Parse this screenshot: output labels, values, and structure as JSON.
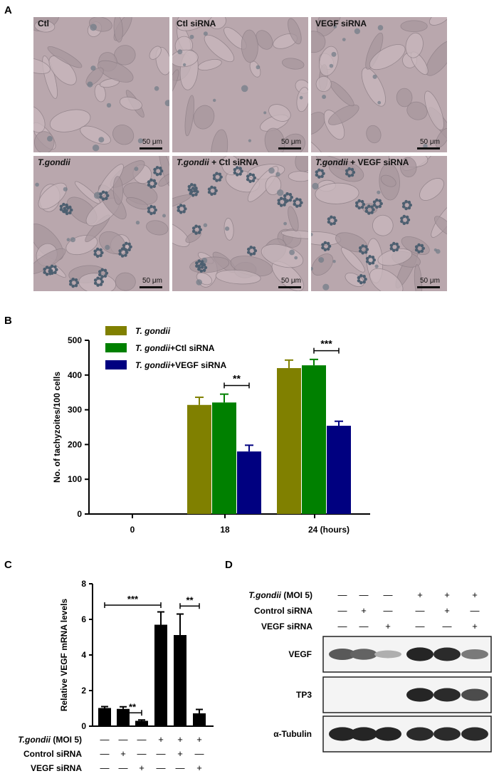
{
  "panels": {
    "a": "A",
    "b": "B",
    "c": "C",
    "d": "D"
  },
  "micrographs": [
    {
      "label": "Ctl",
      "italic": "",
      "rest": "Ctl",
      "scale": "50 μm",
      "infected": false
    },
    {
      "label": "Ctl siRNA",
      "italic": "",
      "rest": "Ctl siRNA",
      "scale": "50 μm",
      "infected": false
    },
    {
      "label": "VEGF siRNA",
      "italic": "",
      "rest": "VEGF siRNA",
      "scale": "50 μm",
      "infected": false
    },
    {
      "label": "T.gondii",
      "italic": "T.gondii",
      "rest": "",
      "scale": "50 μm",
      "infected": true
    },
    {
      "label": "T.gondii + Ctl siRNA",
      "italic": "T.gondii",
      "rest": " + Ctl siRNA",
      "scale": "50 μm",
      "infected": true
    },
    {
      "label": "T.gondii + VEGF siRNA",
      "italic": "T.gondii",
      "rest": " + VEGF siRNA",
      "scale": "50 μm",
      "infected": true
    }
  ],
  "chart_data": [
    {
      "type": "bar",
      "panel": "B",
      "ylabel": "No. of tachyzoites/100 cells",
      "ylim": [
        0,
        500
      ],
      "yticks": [
        "0",
        "100",
        "200",
        "300",
        "400",
        "500"
      ],
      "categories": [
        "0",
        "18",
        "24 (hours)"
      ],
      "legend_position": "top-left",
      "series": [
        {
          "name": "T. gondii",
          "italic": "T. gondii",
          "suffix": "",
          "color": "#808000",
          "values": [
            0,
            314,
            420
          ],
          "errors": [
            0,
            22,
            23
          ]
        },
        {
          "name": "T. gondii+Ctl siRNA",
          "italic": "T. gondii",
          "suffix": "+Ctl siRNA",
          "color": "#008000",
          "values": [
            0,
            321,
            428
          ],
          "errors": [
            0,
            24,
            17
          ]
        },
        {
          "name": "T. gondii+VEGF siRNA",
          "italic": "T. gondii",
          "suffix": "+VEGF siRNA",
          "color": "#000080",
          "values": [
            0,
            180,
            254
          ],
          "errors": [
            0,
            18,
            13
          ]
        }
      ],
      "annotations": [
        {
          "category": "18",
          "text": "**",
          "from_series": 1,
          "to_series": 2,
          "level": 370
        },
        {
          "category": "24 (hours)",
          "text": "***",
          "from_series": 1,
          "to_series": 2,
          "level": 470
        }
      ]
    },
    {
      "type": "bar",
      "panel": "C",
      "ylabel": "Relative VEGF mRNA levels",
      "ylim": [
        0,
        8
      ],
      "yticks": [
        "0",
        "2",
        "4",
        "6",
        "8"
      ],
      "color": "#000000",
      "values": [
        1.02,
        0.97,
        0.3,
        5.7,
        5.12,
        0.72
      ],
      "errors": [
        0.08,
        0.12,
        0.05,
        0.72,
        1.18,
        0.22
      ],
      "annotations": [
        {
          "from": 0,
          "to": 3,
          "text": "***",
          "level": 6.8
        },
        {
          "from": 1,
          "to": 2,
          "text": "**",
          "level": 0.75
        },
        {
          "from": 4,
          "to": 5,
          "text": "**",
          "level": 6.75
        }
      ]
    }
  ],
  "conditions": {
    "rows": [
      {
        "italic": "T.gondii",
        "suffix": " (MOI 5)",
        "signs": [
          "—",
          "—",
          "—",
          "+",
          "+",
          "+"
        ]
      },
      {
        "italic": "",
        "suffix": "Control siRNA",
        "signs": [
          "—",
          "+",
          "—",
          "—",
          "+",
          "—"
        ]
      },
      {
        "italic": "",
        "suffix": "VEGF siRNA",
        "signs": [
          "—",
          "—",
          "+",
          "—",
          "—",
          "+"
        ]
      }
    ]
  },
  "western_blot": {
    "bands": [
      {
        "label": "VEGF",
        "intensities": [
          0.72,
          0.68,
          0.35,
          0.95,
          0.92,
          0.58
        ]
      },
      {
        "label": "TP3",
        "intensities": [
          0,
          0,
          0,
          0.95,
          0.92,
          0.78
        ]
      },
      {
        "label": "α-Tubulin",
        "intensities": [
          0.95,
          0.95,
          0.95,
          0.92,
          0.92,
          0.92
        ]
      }
    ]
  }
}
